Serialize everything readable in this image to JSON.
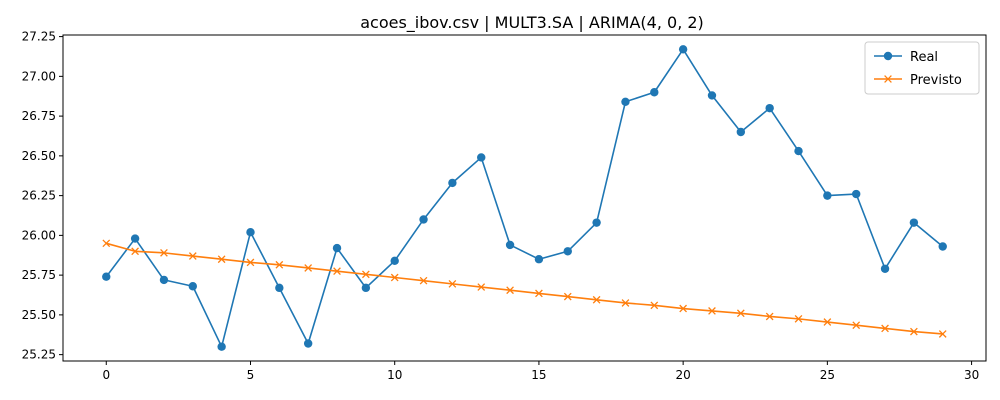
{
  "chart_data": {
    "type": "line",
    "title": "acoes_ibov.csv | MULT3.SA | ARIMA(4, 0, 2)",
    "xlabel": "",
    "ylabel": "",
    "xlim": [
      -1.5,
      30.5
    ],
    "ylim": [
      25.21,
      27.26
    ],
    "x_ticks": [
      0,
      5,
      10,
      15,
      20,
      25,
      30
    ],
    "y_ticks": [
      25.25,
      25.5,
      25.75,
      26.0,
      26.25,
      26.5,
      26.75,
      27.0,
      27.25
    ],
    "grid": false,
    "legend_position": "top-right",
    "x": [
      0,
      1,
      2,
      3,
      4,
      5,
      6,
      7,
      8,
      9,
      10,
      11,
      12,
      13,
      14,
      15,
      16,
      17,
      18,
      19,
      20,
      21,
      22,
      23,
      24,
      25,
      26,
      27,
      28,
      29
    ],
    "series": [
      {
        "name": "Real",
        "color": "#1f77b4",
        "marker": "circle",
        "values": [
          25.74,
          25.98,
          25.72,
          25.68,
          25.3,
          26.02,
          25.67,
          25.32,
          25.92,
          25.67,
          25.84,
          26.1,
          26.33,
          26.49,
          25.94,
          25.85,
          25.9,
          26.08,
          26.84,
          26.9,
          27.17,
          26.88,
          26.65,
          26.8,
          26.53,
          26.25,
          26.26,
          25.79,
          26.08,
          25.93
        ]
      },
      {
        "name": "Previsto",
        "color": "#ff7f0e",
        "marker": "x",
        "values": [
          25.95,
          25.9,
          25.89,
          25.87,
          25.85,
          25.83,
          25.815,
          25.795,
          25.775,
          25.755,
          25.735,
          25.715,
          25.695,
          25.675,
          25.655,
          25.635,
          25.615,
          25.595,
          25.575,
          25.56,
          25.54,
          25.525,
          25.51,
          25.49,
          25.475,
          25.455,
          25.435,
          25.415,
          25.395,
          25.38
        ]
      }
    ]
  }
}
